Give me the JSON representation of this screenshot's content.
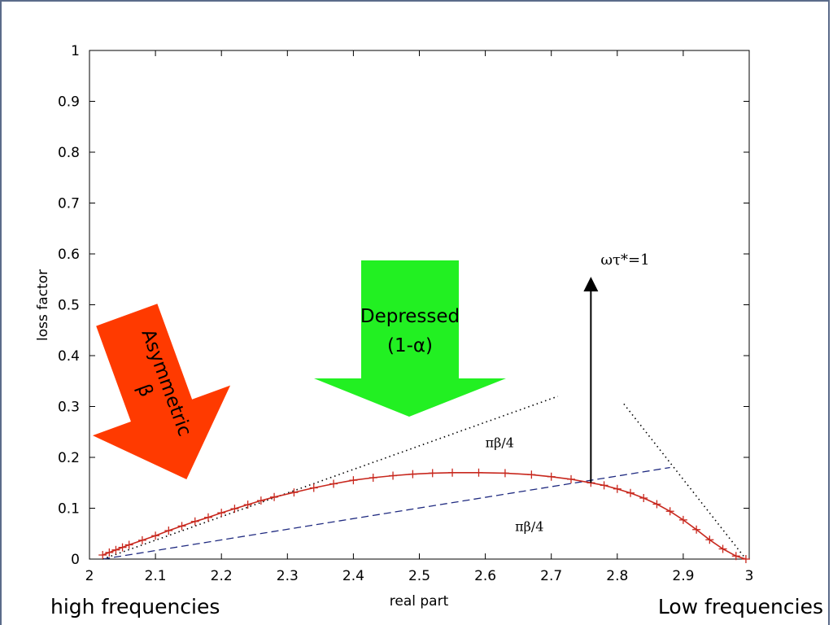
{
  "chart_data": {
    "type": "line",
    "xlabel": "real part",
    "ylabel": "loss factor",
    "xlim": [
      2,
      3
    ],
    "ylim": [
      0,
      1
    ],
    "xticks": [
      "2",
      "2.1",
      "2.2",
      "2.3",
      "2.4",
      "2.5",
      "2.6",
      "2.7",
      "2.8",
      "2.9",
      "3"
    ],
    "yticks": [
      "0",
      "0.1",
      "0.2",
      "0.3",
      "0.4",
      "0.5",
      "0.6",
      "0.7",
      "0.8",
      "0.9",
      "1"
    ],
    "grid": false,
    "series": [
      {
        "color": "#c8281e",
        "marker": "+",
        "points": [
          [
            2.02,
            0.008
          ],
          [
            2.03,
            0.013
          ],
          [
            2.04,
            0.018
          ],
          [
            2.05,
            0.023
          ],
          [
            2.06,
            0.028
          ],
          [
            2.08,
            0.037
          ],
          [
            2.1,
            0.046
          ],
          [
            2.12,
            0.056
          ],
          [
            2.14,
            0.065
          ],
          [
            2.16,
            0.074
          ],
          [
            2.18,
            0.082
          ],
          [
            2.2,
            0.091
          ],
          [
            2.22,
            0.099
          ],
          [
            2.24,
            0.107
          ],
          [
            2.26,
            0.115
          ],
          [
            2.28,
            0.122
          ],
          [
            2.31,
            0.131
          ],
          [
            2.34,
            0.14
          ],
          [
            2.37,
            0.148
          ],
          [
            2.4,
            0.155
          ],
          [
            2.43,
            0.16
          ],
          [
            2.46,
            0.164
          ],
          [
            2.49,
            0.167
          ],
          [
            2.52,
            0.169
          ],
          [
            2.55,
            0.17
          ],
          [
            2.59,
            0.17
          ],
          [
            2.63,
            0.169
          ],
          [
            2.67,
            0.166
          ],
          [
            2.7,
            0.162
          ],
          [
            2.73,
            0.157
          ],
          [
            2.76,
            0.15
          ],
          [
            2.78,
            0.145
          ],
          [
            2.8,
            0.138
          ],
          [
            2.82,
            0.13
          ],
          [
            2.84,
            0.12
          ],
          [
            2.86,
            0.108
          ],
          [
            2.88,
            0.094
          ],
          [
            2.9,
            0.077
          ],
          [
            2.92,
            0.058
          ],
          [
            2.94,
            0.038
          ],
          [
            2.96,
            0.02
          ],
          [
            2.98,
            0.006
          ],
          [
            2.995,
            0.0
          ]
        ]
      }
    ],
    "reference_lines": [
      {
        "style": "dashed",
        "color": "#1f2a80",
        "from": [
          2.02,
          0.0
        ],
        "to": [
          2.88,
          0.18
        ]
      },
      {
        "style": "dotted",
        "color": "#000000",
        "from": [
          2.02,
          0.0
        ],
        "to": [
          2.71,
          0.32
        ]
      },
      {
        "style": "dotted",
        "color": "#000000",
        "from": [
          2.81,
          0.305
        ],
        "to": [
          2.995,
          0.0
        ]
      }
    ],
    "peak_arrow": {
      "x": 2.76,
      "y_from": 0.15,
      "y_to": 0.555,
      "label": "ωτ*=1"
    },
    "angle_labels": [
      {
        "text": "πβ/4",
        "x": 2.6,
        "y": 0.22
      },
      {
        "text": "πβ/4",
        "x": 2.645,
        "y": 0.055
      }
    ]
  },
  "callouts": {
    "asymmetric": {
      "line1": "Asymmetric",
      "line2": "β",
      "color": "#ff3a00"
    },
    "depressed": {
      "line1": "Depressed",
      "line2": "(1-α)",
      "color": "#22f022"
    }
  },
  "captions": {
    "left": "high frequencies",
    "right": "Low frequencies"
  }
}
